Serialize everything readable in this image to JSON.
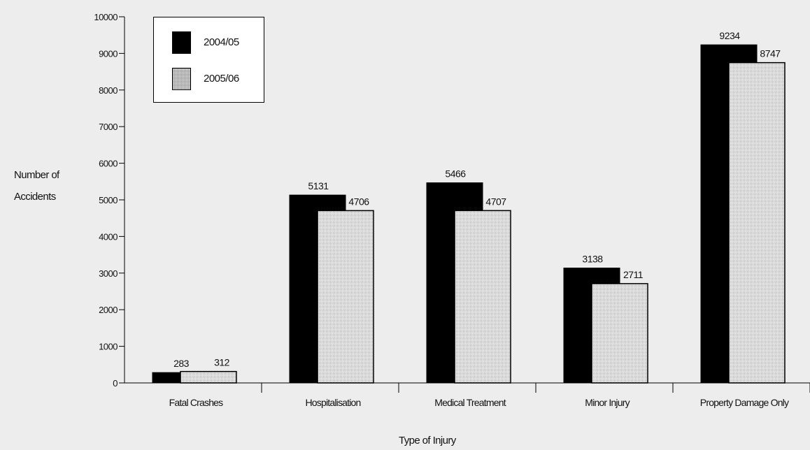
{
  "chart_data": {
    "type": "bar",
    "xlabel": "Type of Injury",
    "ylabel": [
      "Number of",
      "Accidents"
    ],
    "categories": [
      "Fatal Crashes",
      "Hospitalisation",
      "Medical Treatment",
      "Minor Injury",
      "Property Damage Only"
    ],
    "series": [
      {
        "name": "2004/05",
        "values": [
          283,
          5131,
          5466,
          3138,
          9234
        ],
        "fill": "#000000"
      },
      {
        "name": "2005/06",
        "values": [
          312,
          4706,
          4707,
          2711,
          8747
        ],
        "fill": "dotted"
      }
    ],
    "ylim": [
      0,
      10000
    ],
    "yticks": [
      0,
      1000,
      2000,
      3000,
      4000,
      5000,
      6000,
      7000,
      8000,
      9000,
      10000
    ],
    "grid": false,
    "legend_position": "top-left",
    "data_labels": true
  }
}
